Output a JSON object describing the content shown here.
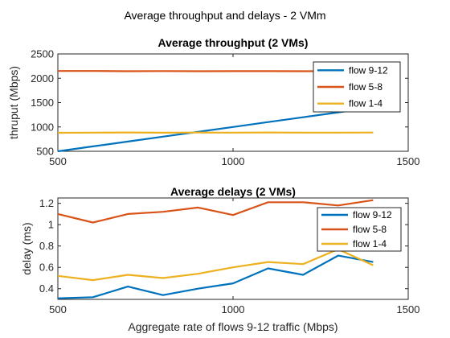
{
  "figure": {
    "suptitle": "Average throughput and delays - 2 VMm",
    "shared_xlabel": "Aggregate rate of flows 9-12 traffic (Mbps)"
  },
  "colors": {
    "flow 9-12": "#0072BD",
    "flow 5-8": "#D95319",
    "flow 1-4": "#EDB120"
  },
  "chart_data": [
    {
      "type": "line",
      "title": "Average throughput (2 VMs)",
      "xlabel": "",
      "ylabel": "thruput (Mbps)",
      "xlim": [
        500,
        1500
      ],
      "ylim": [
        500,
        2500
      ],
      "xticks": [
        500,
        1000,
        1500
      ],
      "yticks": [
        500,
        1000,
        1500,
        2000,
        2500
      ],
      "legend_position": "top-right",
      "series": [
        {
          "name": "flow 9-12",
          "color": "#0072BD",
          "x": [
            500,
            600,
            700,
            800,
            900,
            1000,
            1100,
            1200,
            1300,
            1400
          ],
          "y": [
            500,
            600,
            700,
            800,
            900,
            1000,
            1100,
            1200,
            1300,
            1400
          ]
        },
        {
          "name": "flow 5-8",
          "color": "#D95319",
          "x": [
            500,
            600,
            700,
            800,
            900,
            1000,
            1100,
            1200,
            1300,
            1400
          ],
          "y": [
            2150,
            2150,
            2145,
            2148,
            2145,
            2147,
            2146,
            2145,
            2148,
            2146
          ]
        },
        {
          "name": "flow 1-4",
          "color": "#EDB120",
          "x": [
            500,
            600,
            700,
            800,
            900,
            1000,
            1100,
            1200,
            1300,
            1400
          ],
          "y": [
            880,
            883,
            887,
            882,
            885,
            884,
            886,
            883,
            884,
            885
          ]
        }
      ]
    },
    {
      "type": "line",
      "title": "Average delays (2 VMs)",
      "xlabel": "Aggregate rate of flows 9-12 traffic (Mbps)",
      "ylabel": "delay (ms)",
      "xlim": [
        500,
        1500
      ],
      "ylim": [
        0.3,
        1.25
      ],
      "xticks": [
        500,
        1000,
        1500
      ],
      "yticks": [
        0.4,
        0.6,
        0.8,
        1,
        1.2
      ],
      "legend_position": "top-right",
      "series": [
        {
          "name": "flow 9-12",
          "color": "#0072BD",
          "x": [
            500,
            600,
            700,
            800,
            900,
            1000,
            1100,
            1200,
            1300,
            1400
          ],
          "y": [
            0.31,
            0.32,
            0.42,
            0.34,
            0.4,
            0.45,
            0.59,
            0.53,
            0.71,
            0.65
          ]
        },
        {
          "name": "flow 5-8",
          "color": "#D95319",
          "x": [
            500,
            600,
            700,
            800,
            900,
            1000,
            1100,
            1200,
            1300,
            1400
          ],
          "y": [
            1.1,
            1.02,
            1.1,
            1.12,
            1.16,
            1.09,
            1.21,
            1.21,
            1.18,
            1.23
          ]
        },
        {
          "name": "flow 1-4",
          "color": "#EDB120",
          "x": [
            500,
            600,
            700,
            800,
            900,
            1000,
            1100,
            1200,
            1300,
            1400
          ],
          "y": [
            0.52,
            0.48,
            0.53,
            0.5,
            0.54,
            0.6,
            0.65,
            0.63,
            0.77,
            0.62
          ]
        }
      ]
    }
  ]
}
